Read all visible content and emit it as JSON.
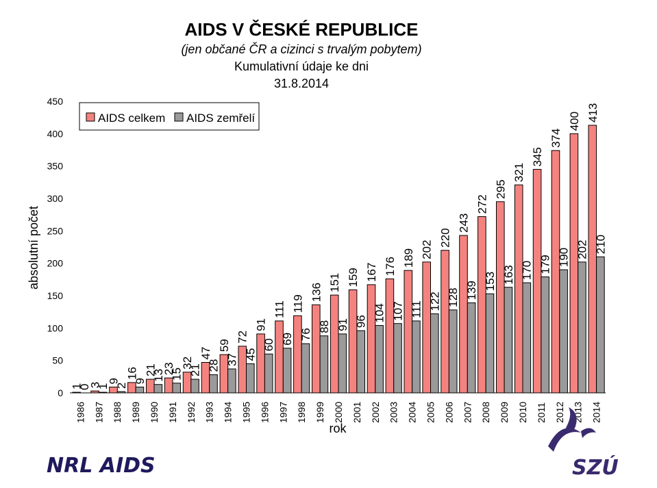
{
  "colors": {
    "celkem": "#f4837f",
    "zemreli": "#9a9a9a",
    "logo_navy": "#1f1a5c",
    "logo_purple": "#3a2a6e"
  },
  "logos": {
    "left_text": "NRL AIDS",
    "right_text": "SZÚ"
  },
  "chart_data": {
    "type": "bar",
    "title": "AIDS V ČESKÉ REPUBLICE",
    "subtitle": "(jen občané ČR a cizinci s trvalým pobytem)",
    "subtitle2": "Kumulativní údaje ke dni",
    "date": "31.8.2014",
    "xlabel": "rok",
    "ylabel": "absolutní počet",
    "ylim": [
      0,
      450
    ],
    "yticks": [
      "0",
      "50",
      "100",
      "150",
      "200",
      "250",
      "300",
      "350",
      "400",
      "450"
    ],
    "grid": false,
    "legend_position": "top-left",
    "categories": [
      "1986",
      "1987",
      "1988",
      "1989",
      "1990",
      "1991",
      "1992",
      "1993",
      "1994",
      "1995",
      "1996",
      "1997",
      "1998",
      "1999",
      "2000",
      "2001",
      "2002",
      "2003",
      "2004",
      "2005",
      "2006",
      "2007",
      "2008",
      "2009",
      "2010",
      "2011",
      "2012",
      "2013",
      "2014"
    ],
    "series": [
      {
        "name": "AIDS celkem",
        "values": [
          1,
          3,
          9,
          16,
          21,
          23,
          32,
          47,
          59,
          72,
          91,
          111,
          119,
          136,
          151,
          159,
          167,
          176,
          189,
          202,
          220,
          243,
          272,
          295,
          321,
          345,
          374,
          400,
          413
        ]
      },
      {
        "name": "AIDS zemřelí",
        "values": [
          0,
          1,
          2,
          9,
          13,
          15,
          21,
          28,
          37,
          45,
          60,
          69,
          76,
          88,
          91,
          96,
          104,
          107,
          111,
          122,
          128,
          139,
          153,
          163,
          170,
          179,
          190,
          202,
          210
        ]
      }
    ]
  }
}
